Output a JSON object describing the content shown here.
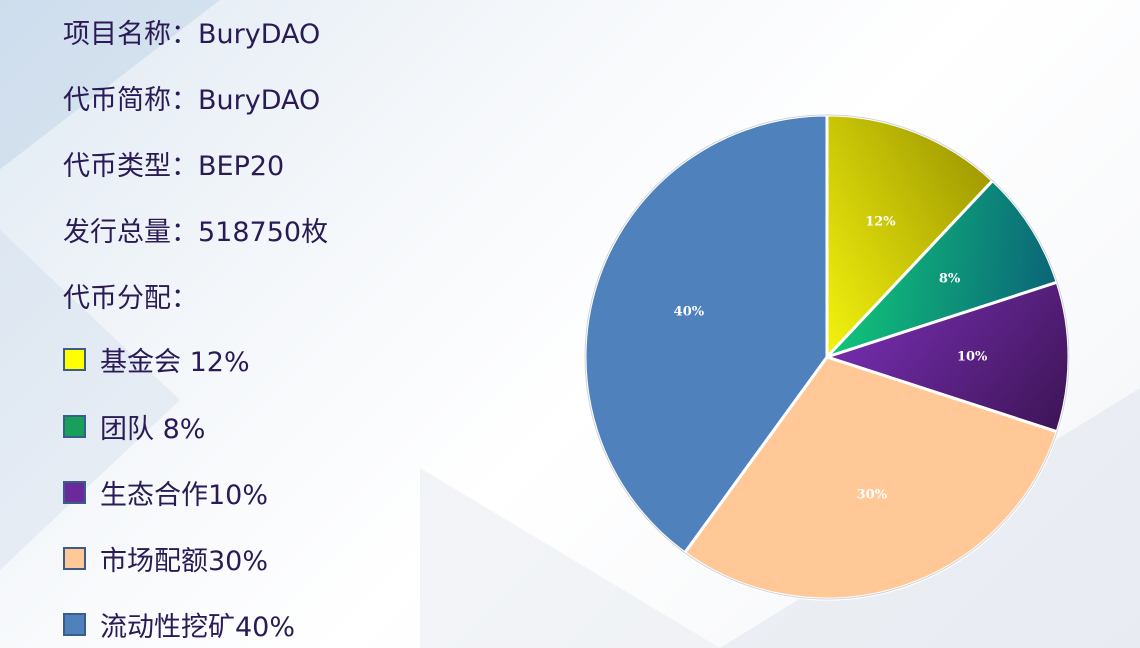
{
  "info": {
    "project_name_label": "项目名称：",
    "project_name": "BuryDAO",
    "token_short_label": "代币简称：",
    "token_short": "BuryDAO",
    "token_type_label": "代币类型：",
    "token_type": "BEP20",
    "total_supply_label": "发行总量：",
    "total_supply": "518750枚",
    "allocation_label": "代币分配："
  },
  "legend": [
    {
      "label": "基金会 12%",
      "color": "#ffff00"
    },
    {
      "label": "团队 8%",
      "color": "#16a05a"
    },
    {
      "label": "生态合作10%",
      "color": "#6a2a9a"
    },
    {
      "label": "市场配额30%",
      "color": "#ffc896"
    },
    {
      "label": "流动性挖矿40%",
      "color": "#4f81bd"
    }
  ],
  "chart_data": {
    "type": "pie",
    "categories": [
      "基金会",
      "团队",
      "生态合作",
      "市场配额",
      "流动性挖矿"
    ],
    "values": [
      12,
      8,
      10,
      30,
      40
    ],
    "labels": [
      "12%",
      "8%",
      "10%",
      "30%",
      "40%"
    ],
    "colors": {
      "基金会": [
        "#ffff10",
        "#a09a00"
      ],
      "团队": [
        "#12d47a",
        "#0a5e78"
      ],
      "生态合作": [
        "#7b30b8",
        "#3c1454"
      ],
      "市场配额": [
        "#ffc896",
        "#ffc896"
      ],
      "流动性挖矿": [
        "#4f81bd",
        "#4f81bd"
      ]
    },
    "start_angle_deg": 0,
    "direction": "clockwise",
    "title": "",
    "legend_position": "left"
  }
}
